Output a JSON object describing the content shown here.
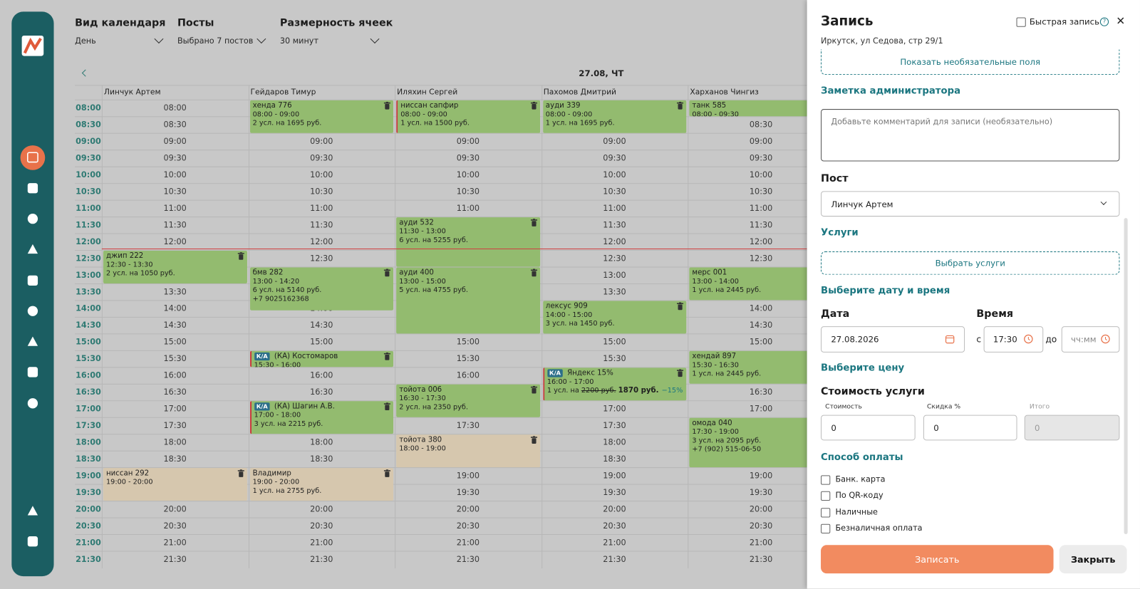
{
  "filters": [
    {
      "label": "Вид календаря",
      "value": "День"
    },
    {
      "label": "Посты",
      "value": "Выбрано 7 постов"
    },
    {
      "label": "Размерность ячеек",
      "value": "30 минут"
    }
  ],
  "calendar": {
    "date": "27.08, ЧТ",
    "times": [
      "08:00",
      "08:30",
      "09:00",
      "09:30",
      "10:00",
      "10:30",
      "11:00",
      "11:30",
      "12:00",
      "12:30",
      "13:00",
      "13:30",
      "14:00",
      "14:30",
      "15:00",
      "15:30",
      "16:00",
      "16:30",
      "17:00",
      "17:30",
      "18:00",
      "18:30",
      "19:00",
      "19:30",
      "20:00",
      "20:30",
      "21:00",
      "21:30"
    ],
    "columns": [
      {
        "name": "Линчук Артем",
        "appointments": [
          {
            "title": "джип 222",
            "lines": [
              "12:30 - 13:30",
              "2 усл. на 1050 руб."
            ],
            "color": "#93bb6f"
          },
          {
            "title": "ниссан 292",
            "lines": [
              "19:00 - 20:00"
            ],
            "color": "#d6c7ae"
          }
        ]
      },
      {
        "name": "Гейдаров Тимур",
        "appointments": [
          {
            "title": "хенда 776",
            "lines": [
              "08:00 - 09:00",
              "2 усл. на 1695 руб."
            ],
            "color": "#93bb6f"
          },
          {
            "title": "бмв 282",
            "lines": [
              "13:00 - 14:20",
              "6 усл. на 5140 руб.",
              "+7 9025162368"
            ],
            "color": "#93bb6f"
          },
          {
            "title": "(КА) Костомаров",
            "badge": "К/А",
            "lines": [
              "15:30 - 16:00"
            ],
            "color": "#93bb6f",
            "border": "#c8393b"
          },
          {
            "title": "(КА) Шагин А.В.",
            "badge": "К/А",
            "lines": [
              "17:00 - 18:00",
              "3 усл. на 2215 руб."
            ],
            "color": "#93bb6f",
            "border": "#c8393b"
          },
          {
            "title": "Владимир",
            "lines": [
              "19:00 - 20:00",
              "1 усл. на 2755 руб."
            ],
            "color": "#d6c7ae"
          }
        ]
      },
      {
        "name": "Иляхин Сергей",
        "appointments": [
          {
            "title": "ниссан сапфир",
            "lines": [
              "08:00 - 09:00",
              "1 усл. на 1500 руб."
            ],
            "color": "#93bb6f",
            "border": "#c8393b"
          },
          {
            "title": "ауди 532",
            "lines": [
              "11:30 - 13:00",
              "6 усл. на 5255 руб."
            ],
            "color": "#93bb6f"
          },
          {
            "title": "ауди 400",
            "lines": [
              "13:00 - 15:00",
              "5 усл. на 4755 руб."
            ],
            "color": "#93bb6f"
          },
          {
            "title": "тойота 006",
            "lines": [
              "16:30 - 17:30",
              "2 усл. на 2350 руб."
            ],
            "color": "#93bb6f"
          },
          {
            "title": "тойота 380",
            "lines": [
              "18:00 - 19:00"
            ],
            "color": "#d6c7ae"
          }
        ]
      },
      {
        "name": "Пахомов Дмитрий",
        "appointments": [
          {
            "title": "ауди 339",
            "lines": [
              "08:00 - 09:00",
              "1 усл. на 1695 руб."
            ],
            "color": "#93bb6f"
          },
          {
            "title": "лексус 909",
            "lines": [
              "14:00 - 15:00",
              "3 усл. на 1450 руб."
            ],
            "color": "#93bb6f"
          },
          {
            "title": "Яндекс 15%",
            "badge": "К/А",
            "lines": [
              "16:00 - 17:00",
              {
                "text": "1 усл. на",
                "old": "2200 руб.",
                "price": "1870 руб.",
                "discount": "−15%"
              }
            ],
            "color": "#93bb6f",
            "border": "#c8393b"
          }
        ]
      },
      {
        "name": "Харханов Чингиз",
        "appointments": [
          {
            "title": "танк 585",
            "lines": [
              "08:00 - 09:30"
            ],
            "color": "#93bb6f"
          },
          {
            "title": "мерс 001",
            "lines": [
              "13:00 - 14:00",
              "1 усл. на 2445 руб."
            ],
            "color": "#93bb6f"
          },
          {
            "title": "хендай 897",
            "lines": [
              "15:30 - 16:30",
              "1 усл. на 2445 руб."
            ],
            "color": "#93bb6f"
          },
          {
            "title": "омода 040",
            "lines": [
              "17:30 - 19:00",
              "3 усл. на 2095 руб.",
              "+7 (902) 515-06-50"
            ],
            "color": "#93bb6f"
          }
        ]
      }
    ]
  },
  "panel": {
    "title": "Запись",
    "quick": "Быстрая запись",
    "help": "?",
    "close_icon": "✕",
    "address": "Иркутск, ул Седова, стр 29/1",
    "optional": "Показать необязательные поля",
    "note_title": "Заметка администратора",
    "note_placeholder": "Добавьте комментарий для записи (необязательно)",
    "post_title": "Пост",
    "post_value": "Линчук Артем",
    "services_title": "Услуги",
    "services_button": "Выбрать услуги",
    "datetime_title": "Выберите дату и время",
    "date_label": "Дата",
    "time_label": "Время",
    "date_value": "27.08.2026",
    "from": "с",
    "from_value": "17:30",
    "to": "до",
    "to_placeholder": "чч:мм",
    "price_title": "Выберите цену",
    "cost_title": "Стоимость услуги",
    "cost_label": "Стоимость",
    "discount_label": "Скидка %",
    "total_label": "Итого",
    "cost_value": "0",
    "discount_value": "0",
    "total_value": "0",
    "payment_title": "Способ оплаты",
    "payments": [
      "Банк. карта",
      "По QR-коду",
      "Наличные",
      "Безналичная оплата"
    ],
    "submit": "Записать",
    "close": "Закрыть"
  }
}
